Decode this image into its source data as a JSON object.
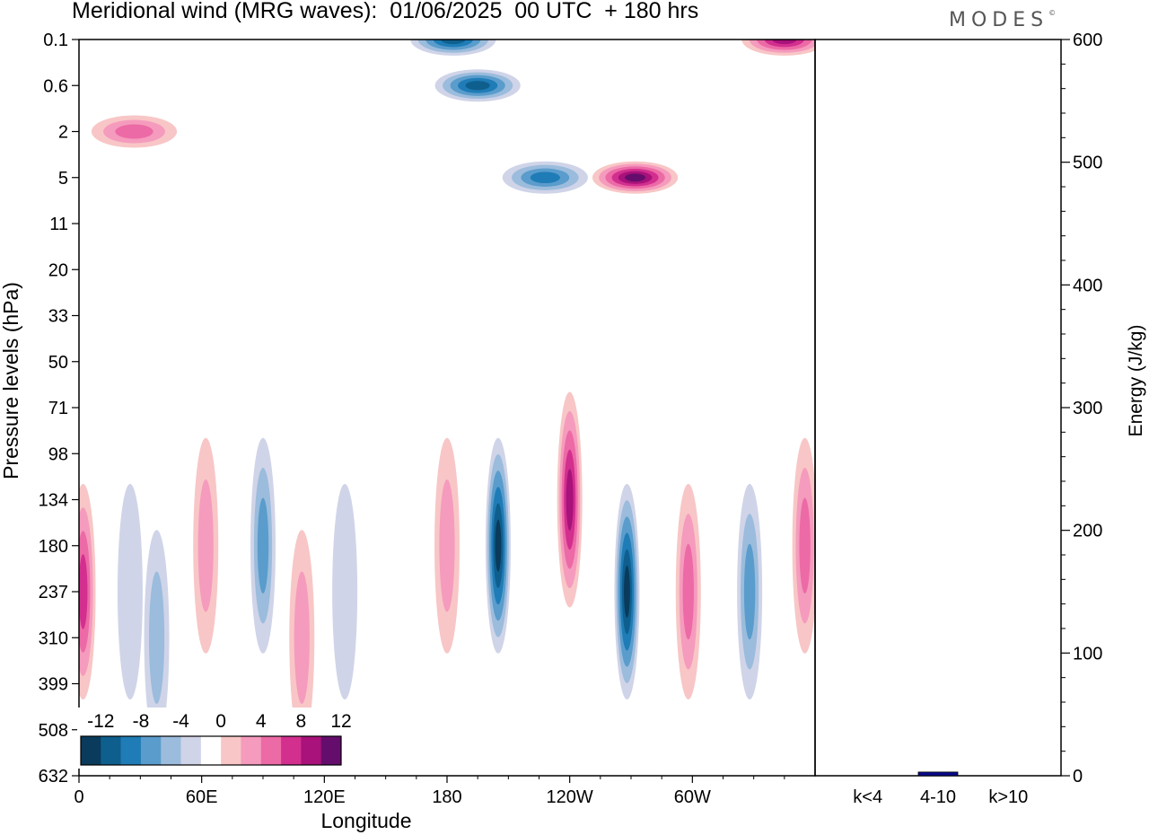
{
  "title": "Meridional wind (MRG waves):  01/06/2025  00 UTC  + 180 hrs",
  "brand": "MODES",
  "brand_mark": "©",
  "colors": {
    "neg": [
      "#0a3b5c",
      "#0f5f8e",
      "#1f7cb6",
      "#5a9ccc",
      "#9bbcdc",
      "#d0d4e8"
    ],
    "pos": [
      "#f8c6c6",
      "#f59bbd",
      "#ec6aa6",
      "#d22f8f",
      "#a8127a",
      "#650d6c"
    ],
    "bar": "#0a0a8c"
  },
  "chart_data": [
    {
      "type": "heatmap",
      "title": "Meridional wind (MRG waves):  01/06/2025  00 UTC  + 180 hrs",
      "xlabel": "Longitude",
      "ylabel": "Pressure levels (hPa)",
      "xticks": [
        "0",
        "60E",
        "120E",
        "180",
        "120W",
        "60W"
      ],
      "yticks": [
        "0.1",
        "0.6",
        "2",
        "5",
        "11",
        "20",
        "33",
        "50",
        "71",
        "98",
        "134",
        "180",
        "237",
        "310",
        "399",
        "508",
        "632"
      ],
      "colorbar_labels": [
        "-12",
        "-8",
        "-4",
        "0",
        "4",
        "8",
        "12"
      ],
      "features": [
        {
          "lon": 2,
          "level": 237,
          "v": 7
        },
        {
          "lon": 25,
          "level": 237,
          "v": -2
        },
        {
          "lon": 38,
          "level": 310,
          "v": -3
        },
        {
          "lon": 62,
          "level": 180,
          "v": 3
        },
        {
          "lon": 90,
          "level": 180,
          "v": -5
        },
        {
          "lon": 109,
          "level": 310,
          "v": 3
        },
        {
          "lon": 130,
          "level": 237,
          "v": -2
        },
        {
          "lon": 180,
          "level": 180,
          "v": 3
        },
        {
          "lon": 205,
          "level": 180,
          "v": -11
        },
        {
          "lon": 240,
          "level": 134,
          "v": 10
        },
        {
          "lon": 268,
          "level": 237,
          "v": -11
        },
        {
          "lon": 298,
          "level": 237,
          "v": 6
        },
        {
          "lon": 328,
          "level": 237,
          "v": -5
        },
        {
          "lon": 355,
          "level": 180,
          "v": 5
        },
        {
          "lon": 27,
          "level": 2,
          "v": 5
        },
        {
          "lon": 195,
          "level": 0.6,
          "v": -10
        },
        {
          "lon": 228,
          "level": 5,
          "v": -7
        },
        {
          "lon": 272,
          "level": 5,
          "v": 11
        },
        {
          "lon": 183,
          "level": 0.1,
          "v": -9
        },
        {
          "lon": 345,
          "level": 0.1,
          "v": 9
        }
      ]
    },
    {
      "type": "bar",
      "ylabel": "Energy (J/kg)",
      "ylim": [
        0,
        600
      ],
      "yticks": [
        0,
        100,
        200,
        300,
        400,
        500,
        600
      ],
      "categories": [
        "k<4",
        "4-10",
        "k>10"
      ],
      "values": [
        0,
        3,
        0
      ]
    }
  ]
}
